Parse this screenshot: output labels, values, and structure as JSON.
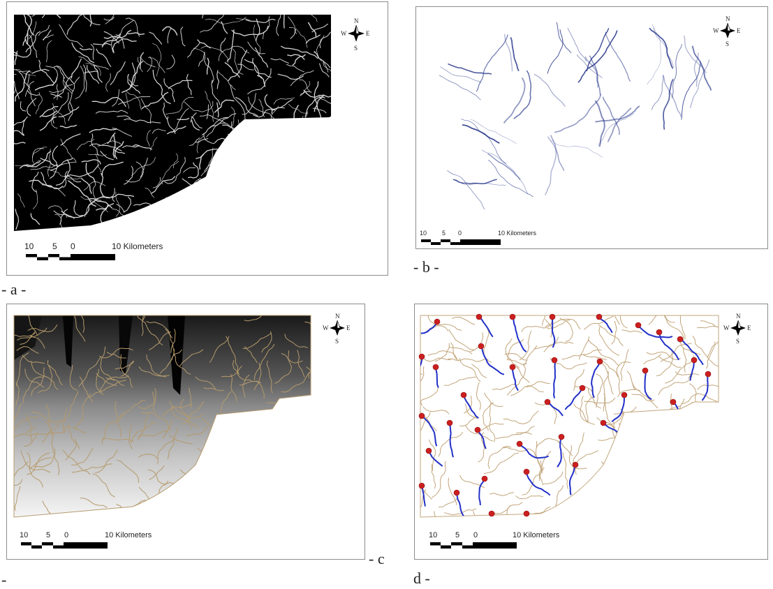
{
  "panels": [
    {
      "id": "a",
      "caption": "- a -",
      "map_type": "flow-accumulation raster",
      "background": "#000000",
      "stream_color": "#ffffff"
    },
    {
      "id": "b",
      "caption": "- b -",
      "map_type": "stream network",
      "stream_color": "#2a3a8c"
    },
    {
      "id": "c",
      "caption_part1": "- c",
      "caption_part2": "-",
      "map_type": "watershed grayscale",
      "boundary_color": "#b49a6c"
    },
    {
      "id": "d",
      "caption": "d -",
      "map_type": "watersheds with streams and outlets",
      "boundary_color": "#c2a57a",
      "stream_color": "#2230c8",
      "point_color": "#cc1f1f"
    }
  ],
  "scale_bar": {
    "labels": [
      "10",
      "5",
      "0",
      "10 Kilometers"
    ]
  },
  "north_arrow": {
    "n": "N",
    "s": "S",
    "e": "E",
    "w": "W",
    "icon": "compass-rose-icon"
  }
}
